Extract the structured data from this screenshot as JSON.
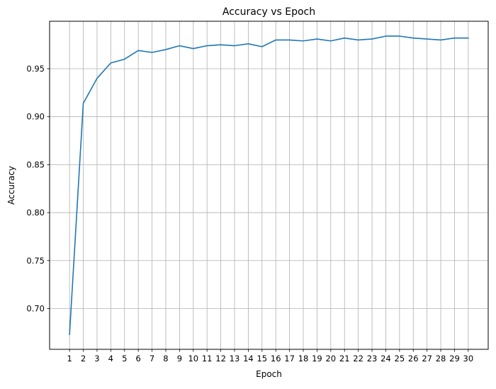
{
  "chart_data": {
    "type": "line",
    "title": "Accuracy vs Epoch",
    "xlabel": "Epoch",
    "ylabel": "Accuracy",
    "x": [
      1,
      2,
      3,
      4,
      5,
      6,
      7,
      8,
      9,
      10,
      11,
      12,
      13,
      14,
      15,
      16,
      17,
      18,
      19,
      20,
      21,
      22,
      23,
      24,
      25,
      26,
      27,
      28,
      29,
      30
    ],
    "series": [
      {
        "name": "",
        "values": [
          0.673,
          0.914,
          0.94,
          0.956,
          0.96,
          0.969,
          0.967,
          0.97,
          0.974,
          0.971,
          0.974,
          0.975,
          0.974,
          0.976,
          0.973,
          0.98,
          0.98,
          0.979,
          0.981,
          0.979,
          0.982,
          0.98,
          0.981,
          0.984,
          0.984,
          0.982,
          0.981,
          0.98,
          0.982,
          0.982
        ],
        "color": "#1f77b4"
      }
    ],
    "xticks": [
      "1",
      "2",
      "3",
      "4",
      "5",
      "6",
      "7",
      "8",
      "9",
      "10",
      "11",
      "12",
      "13",
      "14",
      "15",
      "16",
      "17",
      "18",
      "19",
      "20",
      "21",
      "22",
      "23",
      "24",
      "25",
      "26",
      "27",
      "28",
      "29",
      "30"
    ],
    "yticks": [
      0.7,
      0.75,
      0.8,
      0.85,
      0.9,
      0.95
    ],
    "ytick_labels": [
      "0.70",
      "0.75",
      "0.80",
      "0.85",
      "0.90",
      "0.95"
    ],
    "xlim": [
      -0.45,
      31.45
    ],
    "ylim": [
      0.6575,
      0.9995
    ],
    "grid": true,
    "legend": "none",
    "grid_color": "#b0b0b0",
    "axis_color": "#000000",
    "background": "#ffffff"
  }
}
